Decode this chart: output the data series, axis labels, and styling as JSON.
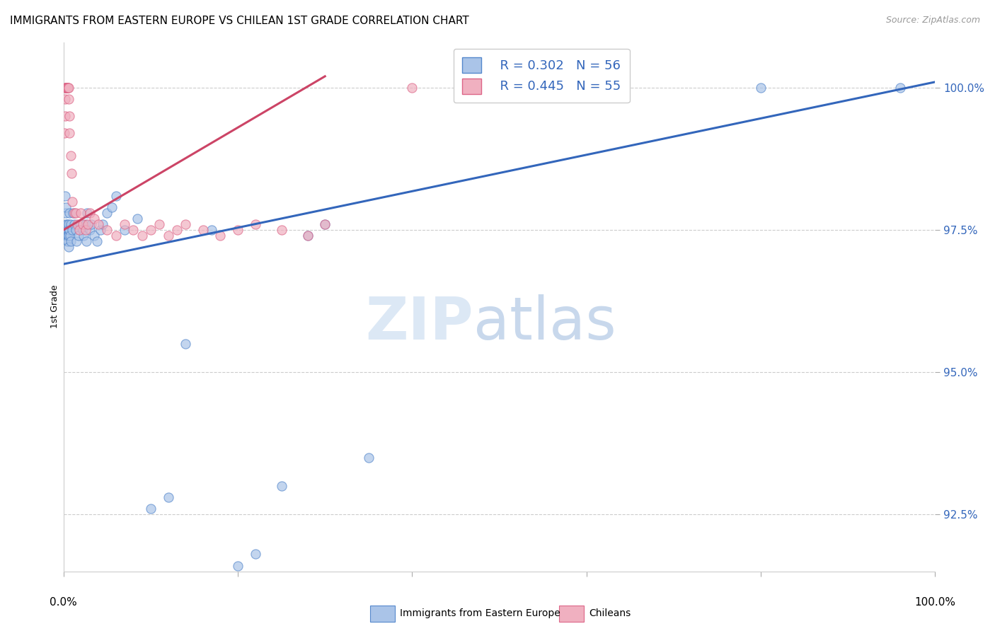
{
  "title": "IMMIGRANTS FROM EASTERN EUROPE VS CHILEAN 1ST GRADE CORRELATION CHART",
  "source": "Source: ZipAtlas.com",
  "ylabel": "1st Grade",
  "legend_blue_r": "R = 0.302",
  "legend_blue_n": "N = 56",
  "legend_pink_r": "R = 0.445",
  "legend_pink_n": "N = 55",
  "legend_blue_label": "Immigrants from Eastern Europe",
  "legend_pink_label": "Chileans",
  "ytick_labels": [
    "92.5%",
    "95.0%",
    "97.5%",
    "100.0%"
  ],
  "ytick_values": [
    92.5,
    95.0,
    97.5,
    100.0
  ],
  "xlim": [
    0.0,
    100.0
  ],
  "ylim": [
    91.5,
    100.8
  ],
  "blue_color": "#aac4e8",
  "blue_edge_color": "#5588cc",
  "pink_color": "#f0b0c0",
  "pink_edge_color": "#dd6688",
  "blue_line_color": "#3366bb",
  "pink_line_color": "#cc4466",
  "blue_scatter_x": [
    0.2,
    0.25,
    0.3,
    0.3,
    0.35,
    0.35,
    0.4,
    0.4,
    0.45,
    0.45,
    0.5,
    0.5,
    0.55,
    0.55,
    0.6,
    0.6,
    0.65,
    0.7,
    0.75,
    0.8,
    0.85,
    1.0,
    1.1,
    1.2,
    1.4,
    1.5,
    1.7,
    2.0,
    2.2,
    2.3,
    2.5,
    2.6,
    2.7,
    3.0,
    3.2,
    3.5,
    3.8,
    4.2,
    4.5,
    5.0,
    5.5,
    6.0,
    7.0,
    8.5,
    10.0,
    12.0,
    14.0,
    17.0,
    20.0,
    22.0,
    25.0,
    28.0,
    30.0,
    35.0,
    80.0,
    96.0
  ],
  "blue_scatter_y": [
    98.1,
    97.8,
    97.9,
    97.6,
    97.5,
    97.4,
    97.5,
    97.3,
    97.6,
    97.4,
    97.4,
    97.3,
    97.5,
    97.2,
    97.6,
    97.4,
    97.8,
    97.5,
    97.4,
    97.3,
    97.6,
    97.5,
    97.8,
    97.6,
    97.5,
    97.3,
    97.4,
    97.6,
    97.5,
    97.4,
    97.6,
    97.3,
    97.8,
    97.5,
    97.6,
    97.4,
    97.3,
    97.5,
    97.6,
    97.8,
    97.9,
    98.1,
    97.5,
    97.7,
    92.6,
    92.8,
    95.5,
    97.5,
    91.6,
    91.8,
    93.0,
    97.4,
    97.6,
    93.5,
    100.0,
    100.0
  ],
  "pink_scatter_x": [
    0.1,
    0.15,
    0.2,
    0.2,
    0.25,
    0.25,
    0.3,
    0.3,
    0.3,
    0.35,
    0.35,
    0.35,
    0.4,
    0.4,
    0.45,
    0.45,
    0.5,
    0.5,
    0.55,
    0.6,
    0.65,
    0.7,
    0.8,
    0.9,
    1.0,
    1.2,
    1.4,
    1.6,
    1.8,
    2.0,
    2.2,
    2.5,
    2.8,
    3.0,
    3.5,
    4.0,
    5.0,
    6.0,
    7.0,
    8.0,
    9.0,
    10.0,
    11.0,
    12.0,
    13.0,
    14.0,
    16.0,
    18.0,
    20.0,
    22.0,
    25.0,
    28.0,
    30.0,
    40.0,
    50.0
  ],
  "pink_scatter_y": [
    99.2,
    99.5,
    99.8,
    100.0,
    100.0,
    100.0,
    100.0,
    100.0,
    100.0,
    100.0,
    100.0,
    100.0,
    100.0,
    100.0,
    100.0,
    100.0,
    100.0,
    100.0,
    100.0,
    99.8,
    99.5,
    99.2,
    98.8,
    98.5,
    98.0,
    97.8,
    97.8,
    97.6,
    97.5,
    97.8,
    97.6,
    97.5,
    97.6,
    97.8,
    97.7,
    97.6,
    97.5,
    97.4,
    97.6,
    97.5,
    97.4,
    97.5,
    97.6,
    97.4,
    97.5,
    97.6,
    97.5,
    97.4,
    97.5,
    97.6,
    97.5,
    97.4,
    97.6,
    100.0,
    100.0
  ],
  "blue_line_x": [
    0.0,
    100.0
  ],
  "blue_line_y": [
    96.9,
    100.1
  ],
  "pink_line_x": [
    0.0,
    30.0
  ],
  "pink_line_y": [
    97.5,
    100.2
  ]
}
